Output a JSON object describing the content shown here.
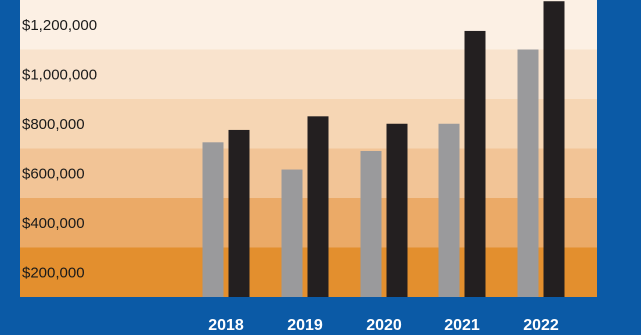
{
  "chart_data": {
    "type": "bar",
    "title": "",
    "xlabel": "",
    "ylabel": "",
    "categories": [
      "2018",
      "2019",
      "2020",
      "2021",
      "2022"
    ],
    "series": [
      {
        "color": "#9a9a9c",
        "values": [
          625000,
          515000,
          590000,
          700000,
          1000000
        ]
      },
      {
        "color": "#231f20",
        "values": [
          675000,
          730000,
          700000,
          1075000,
          1195000
        ]
      }
    ],
    "ylim": [
      0,
      1200000
    ],
    "yticks": [
      200000,
      400000,
      600000,
      800000,
      1000000,
      1200000
    ],
    "ytick_labels": [
      "$200,000",
      "$400,000",
      "$600,000",
      "$800,000",
      "$1,000,000",
      "$1,200,000"
    ],
    "band_colors": [
      "#e38f2e",
      "#ebaa67",
      "#f2c496",
      "#f6d6b4",
      "#f9e3cd",
      "#fcf0e4"
    ],
    "background_color": "#0b5aa6",
    "grid": false,
    "legend": "none"
  }
}
